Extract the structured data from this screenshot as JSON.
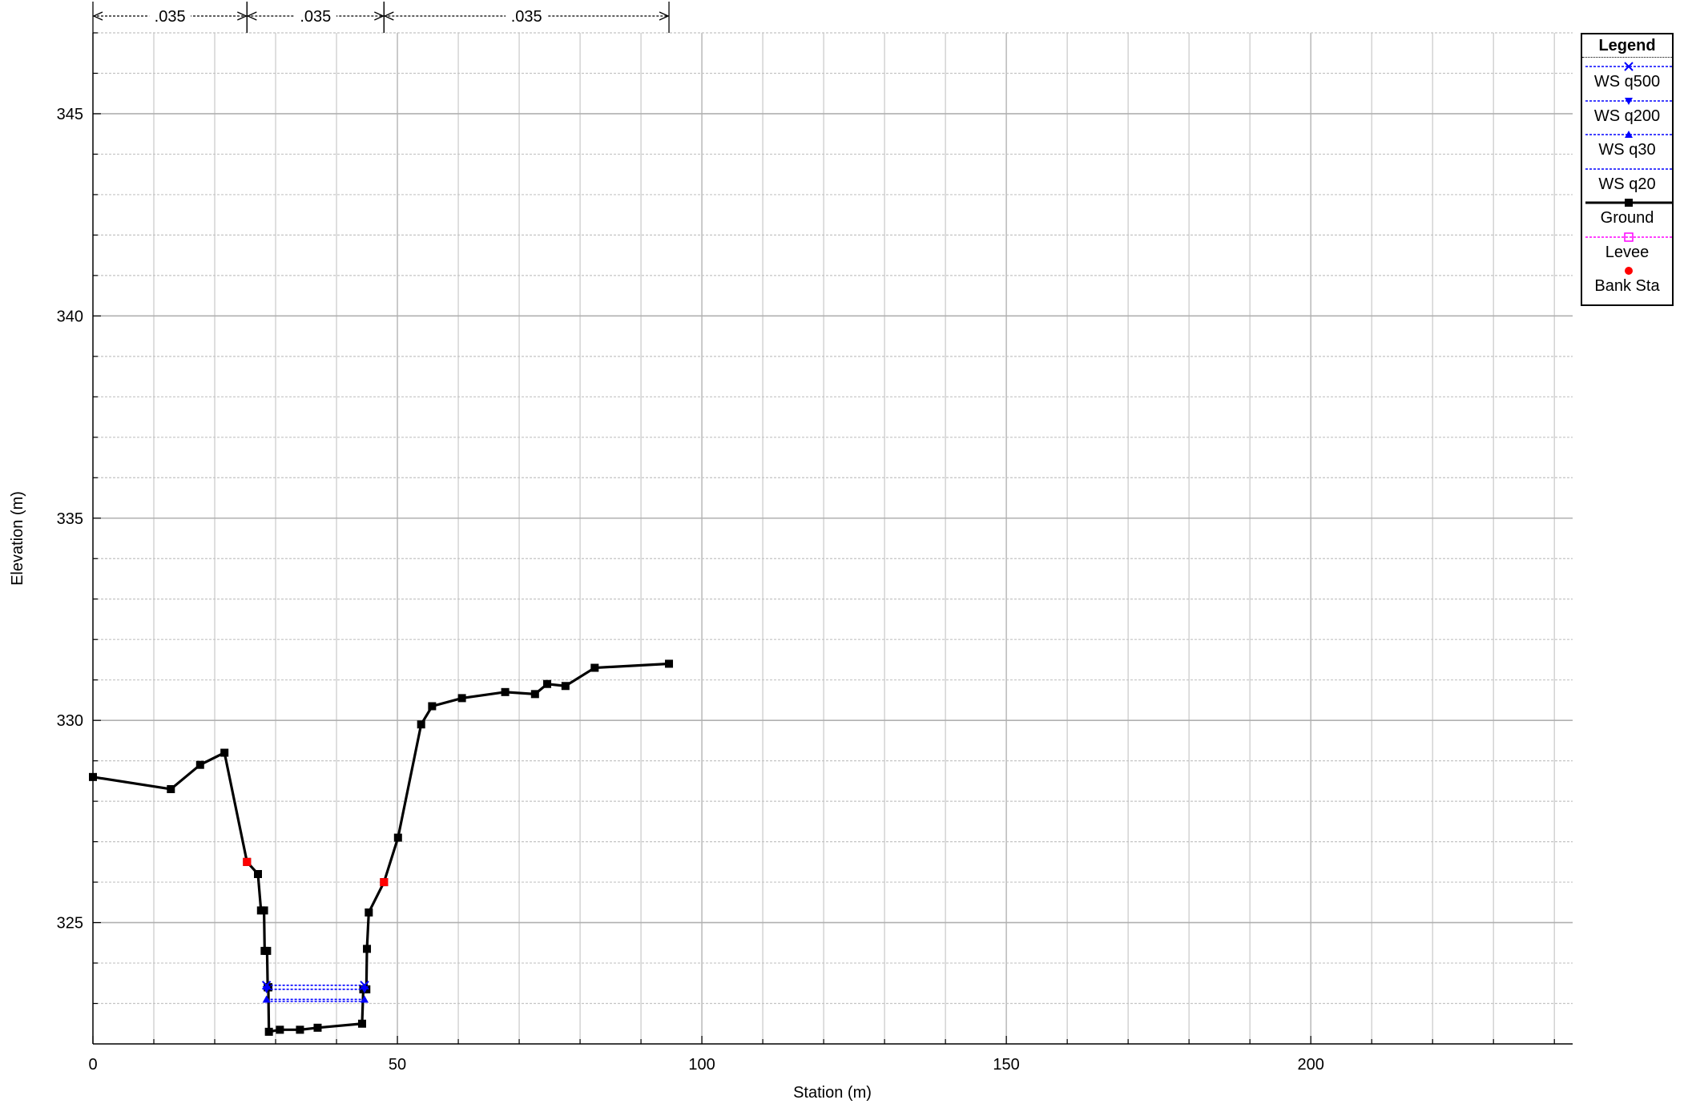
{
  "chart_data": {
    "type": "line",
    "title": "",
    "xlabel": "Station (m)",
    "ylabel": "Elevation (m)",
    "xlim": [
      0,
      243
    ],
    "ylim": [
      322,
      347
    ],
    "x_ticks": [
      0,
      50,
      100,
      150,
      200
    ],
    "y_ticks": [
      325,
      330,
      335,
      340,
      345
    ],
    "grid": true,
    "legend_position": "top-right",
    "legend_title": "Legend",
    "manning_segments": [
      {
        "label": ".035",
        "x_start": 0,
        "x_end": 25.3
      },
      {
        "label": ".035",
        "x_start": 25.3,
        "x_end": 47.8
      },
      {
        "label": ".035",
        "x_start": 47.8,
        "x_end": 94.6
      }
    ],
    "series": [
      {
        "name": "WS q500",
        "color": "#0000ff",
        "marker": "x",
        "line": "dotted",
        "x": [
          28.5,
          44.6
        ],
        "y": [
          323.45,
          323.45
        ]
      },
      {
        "name": "WS q200",
        "color": "#0000ff",
        "marker": "triangle-down",
        "line": "dotted",
        "x": [
          28.5,
          44.6
        ],
        "y": [
          323.35,
          323.35
        ]
      },
      {
        "name": "WS q30",
        "color": "#0000ff",
        "marker": "triangle-up",
        "line": "dotted",
        "x": [
          28.5,
          44.6
        ],
        "y": [
          323.1,
          323.1
        ]
      },
      {
        "name": "WS q20",
        "color": "#0000ff",
        "marker": "none",
        "line": "dotted",
        "x": [
          28.5,
          44.6
        ],
        "y": [
          323.05,
          323.05
        ]
      },
      {
        "name": "Ground",
        "color": "#000000",
        "marker": "square",
        "line": "solid",
        "x": [
          0,
          12.8,
          17.6,
          21.6,
          25.3,
          27.1,
          27.6,
          28.1,
          28.2,
          28.6,
          28.7,
          28.8,
          28.8,
          28.9,
          30.7,
          34.0,
          36.9,
          44.2,
          44.4,
          44.9,
          45.0,
          45.3,
          47.8,
          50.1,
          53.9,
          55.7,
          60.6,
          67.7,
          72.6,
          74.6,
          77.6,
          82.4,
          94.6
        ],
        "y": [
          328.6,
          328.3,
          328.9,
          329.2,
          326.5,
          326.2,
          325.3,
          325.3,
          324.3,
          324.3,
          323.4,
          323.4,
          323.4,
          322.3,
          322.35,
          322.35,
          322.4,
          322.5,
          323.35,
          323.35,
          324.35,
          325.25,
          326.0,
          327.1,
          329.9,
          330.35,
          330.55,
          330.7,
          330.65,
          330.9,
          330.85,
          331.3,
          331.4
        ]
      },
      {
        "name": "Levee",
        "color": "#ff00ff",
        "marker": "square-open",
        "line": "dotted",
        "x": [
          25.3,
          47.8
        ],
        "y": [
          326.5,
          326.0
        ]
      },
      {
        "name": "Bank Sta",
        "color": "#ff0000",
        "marker": "circle",
        "line": "none",
        "x": [
          25.3,
          47.8
        ],
        "y": [
          326.5,
          326.0
        ]
      }
    ]
  }
}
